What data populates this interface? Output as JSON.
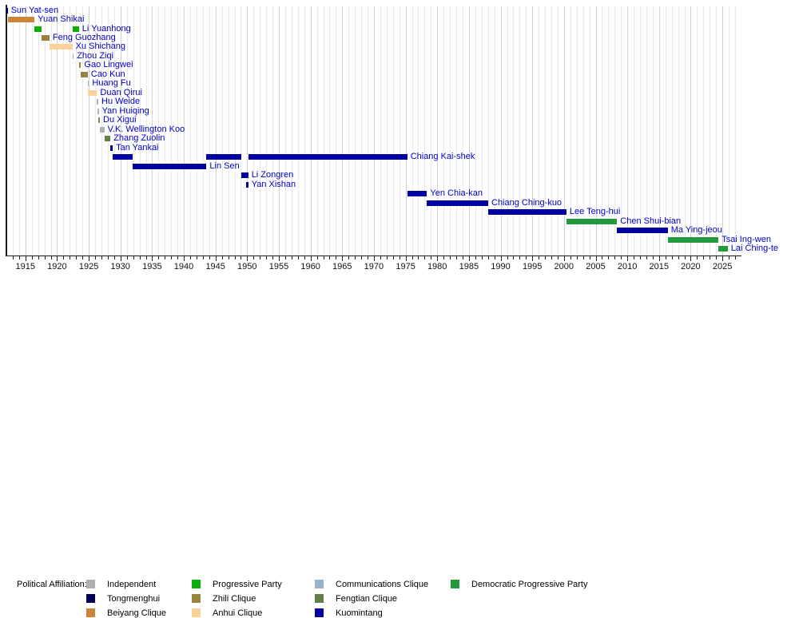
{
  "chart_data": {
    "type": "timeline",
    "x_axis": {
      "start": 1912,
      "end": 2028,
      "major_ticks": [
        1915,
        1920,
        1925,
        1930,
        1935,
        1940,
        1945,
        1950,
        1955,
        1960,
        1965,
        1970,
        1975,
        1980,
        1985,
        1990,
        1995,
        2000,
        2005,
        2010,
        2015,
        2020,
        2025
      ],
      "minor_tick_every_years": 1,
      "grid": true
    },
    "people": [
      {
        "name": "Sun Yat-sen",
        "affiliation": "Tongmenghui",
        "terms": [
          [
            1912.0,
            1912.2
          ]
        ]
      },
      {
        "name": "Yuan Shikai",
        "affiliation": "Beiyang Clique",
        "terms": [
          [
            1912.2,
            1916.45
          ]
        ]
      },
      {
        "name": "Li Yuanhong",
        "affiliation": "Progressive Party",
        "terms": [
          [
            1916.45,
            1917.55
          ],
          [
            1922.45,
            1923.45
          ]
        ]
      },
      {
        "name": "Feng Guozhang",
        "affiliation": "Zhili Clique",
        "terms": [
          [
            1917.55,
            1918.8
          ]
        ]
      },
      {
        "name": "Xu Shichang",
        "affiliation": "Anhui Clique",
        "terms": [
          [
            1918.8,
            1922.42
          ]
        ]
      },
      {
        "name": "Zhou Ziqi",
        "affiliation": "Communications Clique",
        "terms": [
          [
            1922.42,
            1922.47
          ]
        ]
      },
      {
        "name": "Gao Lingwei",
        "affiliation": "Zhili Clique",
        "terms": [
          [
            1923.45,
            1923.78
          ]
        ]
      },
      {
        "name": "Cao Kun",
        "affiliation": "Zhili Clique",
        "terms": [
          [
            1923.78,
            1924.84
          ]
        ]
      },
      {
        "name": "Huang Fu",
        "affiliation": "Independent",
        "terms": [
          [
            1924.84,
            1924.9
          ]
        ]
      },
      {
        "name": "Duan Qirui",
        "affiliation": "Anhui Clique",
        "terms": [
          [
            1924.9,
            1926.3
          ]
        ]
      },
      {
        "name": "Hu Weide",
        "affiliation": "Independent",
        "terms": [
          [
            1926.3,
            1926.37
          ]
        ]
      },
      {
        "name": "Yan Huiqing",
        "affiliation": "Independent",
        "terms": [
          [
            1926.37,
            1926.47
          ]
        ]
      },
      {
        "name": "Du Xigui",
        "affiliation": "Zhili Clique",
        "terms": [
          [
            1926.47,
            1926.75
          ]
        ]
      },
      {
        "name": "V.K. Wellington Koo",
        "affiliation": "Independent",
        "terms": [
          [
            1926.75,
            1927.46
          ]
        ]
      },
      {
        "name": "Zhang Zuolin",
        "affiliation": "Fengtian Clique",
        "terms": [
          [
            1927.46,
            1928.42
          ]
        ]
      },
      {
        "name": "Tan Yankai",
        "affiliation": "Kuomintang",
        "terms": [
          [
            1928.45,
            1928.78
          ]
        ]
      },
      {
        "name": "Chiang Kai-shek",
        "affiliation": "Kuomintang",
        "terms": [
          [
            1928.78,
            1931.95
          ],
          [
            1943.58,
            1949.06
          ],
          [
            1950.17,
            1975.26
          ]
        ]
      },
      {
        "name": "Lin Sen",
        "affiliation": "Kuomintang",
        "terms": [
          [
            1931.95,
            1943.58
          ]
        ]
      },
      {
        "name": "Li Zongren",
        "affiliation": "Kuomintang",
        "terms": [
          [
            1949.06,
            1950.17
          ]
        ]
      },
      {
        "name": "Yan Xishan",
        "affiliation": "Kuomintang",
        "terms": [
          [
            1949.88,
            1950.17
          ]
        ]
      },
      {
        "name": "Yen Chia-kan",
        "affiliation": "Kuomintang",
        "terms": [
          [
            1975.26,
            1978.38
          ]
        ]
      },
      {
        "name": "Chiang Ching-kuo",
        "affiliation": "Kuomintang",
        "terms": [
          [
            1978.38,
            1988.04
          ]
        ]
      },
      {
        "name": "Lee Teng-hui",
        "affiliation": "Kuomintang",
        "terms": [
          [
            1988.04,
            2000.38
          ]
        ]
      },
      {
        "name": "Chen Shui-bian",
        "affiliation": "Democratic Progressive Party",
        "terms": [
          [
            2000.38,
            2008.38
          ]
        ]
      },
      {
        "name": "Ma Ying-jeou",
        "affiliation": "Kuomintang",
        "terms": [
          [
            2008.38,
            2016.38
          ]
        ]
      },
      {
        "name": "Tsai Ing-wen",
        "affiliation": "Democratic Progressive Party",
        "terms": [
          [
            2016.38,
            2024.38
          ]
        ]
      },
      {
        "name": "Lai Ching-te",
        "affiliation": "Democratic Progressive Party",
        "terms": [
          [
            2024.38,
            2025.85
          ]
        ]
      }
    ],
    "legend": {
      "title": "Political Affiliation:",
      "entries": [
        {
          "label": "Independent",
          "color": "#b0b0b0"
        },
        {
          "label": "Tongmenghui",
          "color": "#000050"
        },
        {
          "label": "Beiyang Clique",
          "color": "#cc8437"
        },
        {
          "label": "Progressive Party",
          "color": "#09b009"
        },
        {
          "label": "Zhili Clique",
          "color": "#98843e"
        },
        {
          "label": "Anhui Clique",
          "color": "#fcd09a"
        },
        {
          "label": "Communications Clique",
          "color": "#99b3cc"
        },
        {
          "label": "Fengtian Clique",
          "color": "#628046"
        },
        {
          "label": "Kuomintang",
          "color": "#0000a0"
        },
        {
          "label": "Democratic Progressive Party",
          "color": "#22993f"
        }
      ],
      "position": "bottom"
    }
  }
}
